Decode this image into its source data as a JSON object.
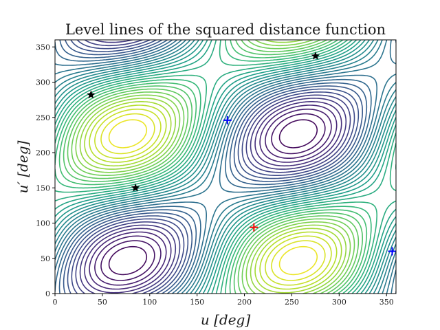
{
  "chart_data": {
    "type": "contour",
    "title": "Level lines of the squared distance function",
    "xlabel": "u [deg]",
    "ylabel": "u′ [deg]",
    "xlim": [
      0,
      360
    ],
    "ylim": [
      0,
      360
    ],
    "xticks": [
      0,
      50,
      100,
      150,
      200,
      250,
      300,
      350
    ],
    "yticks": [
      0,
      50,
      100,
      150,
      200,
      250,
      300,
      350
    ],
    "colormap": "viridis",
    "stars": [
      [
        38,
        282
      ],
      [
        85,
        150
      ],
      [
        275,
        337
      ]
    ],
    "plus_markers": [
      {
        "x": 182,
        "y": 246,
        "color": "#0000ff"
      },
      {
        "x": 356,
        "y": 60,
        "color": "#0000ff"
      },
      {
        "x": 210,
        "y": 94,
        "color": "#ff0000"
      }
    ]
  }
}
